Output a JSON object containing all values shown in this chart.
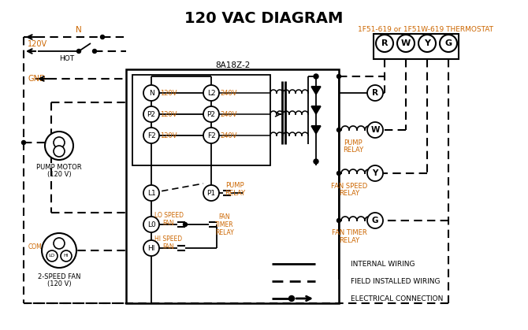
{
  "title": "120 VAC DIAGRAM",
  "title_fontsize": 14,
  "title_fontweight": "bold",
  "background_color": "#ffffff",
  "line_color": "#000000",
  "orange_color": "#cc6600",
  "thermostat_label": "1F51-619 or 1F51W-619 THERMOSTAT",
  "control_box_label": "8A18Z-2",
  "left_circle_labels": [
    "N",
    "P2",
    "F2"
  ],
  "right_circle_labels": [
    "L2",
    "P2",
    "F2"
  ],
  "volts_120": [
    "120V",
    "120V",
    "120V"
  ],
  "volts_240": [
    "240V",
    "240V",
    "240V"
  ],
  "therm_labels": [
    "R",
    "W",
    "Y",
    "G"
  ],
  "legend_items": [
    {
      "label": "INTERNAL WIRING",
      "style": "solid"
    },
    {
      "label": "FIELD INSTALLED WIRING",
      "style": "dashed"
    },
    {
      "label": "ELECTRICAL CONNECTION",
      "style": "dot_arrow"
    }
  ]
}
